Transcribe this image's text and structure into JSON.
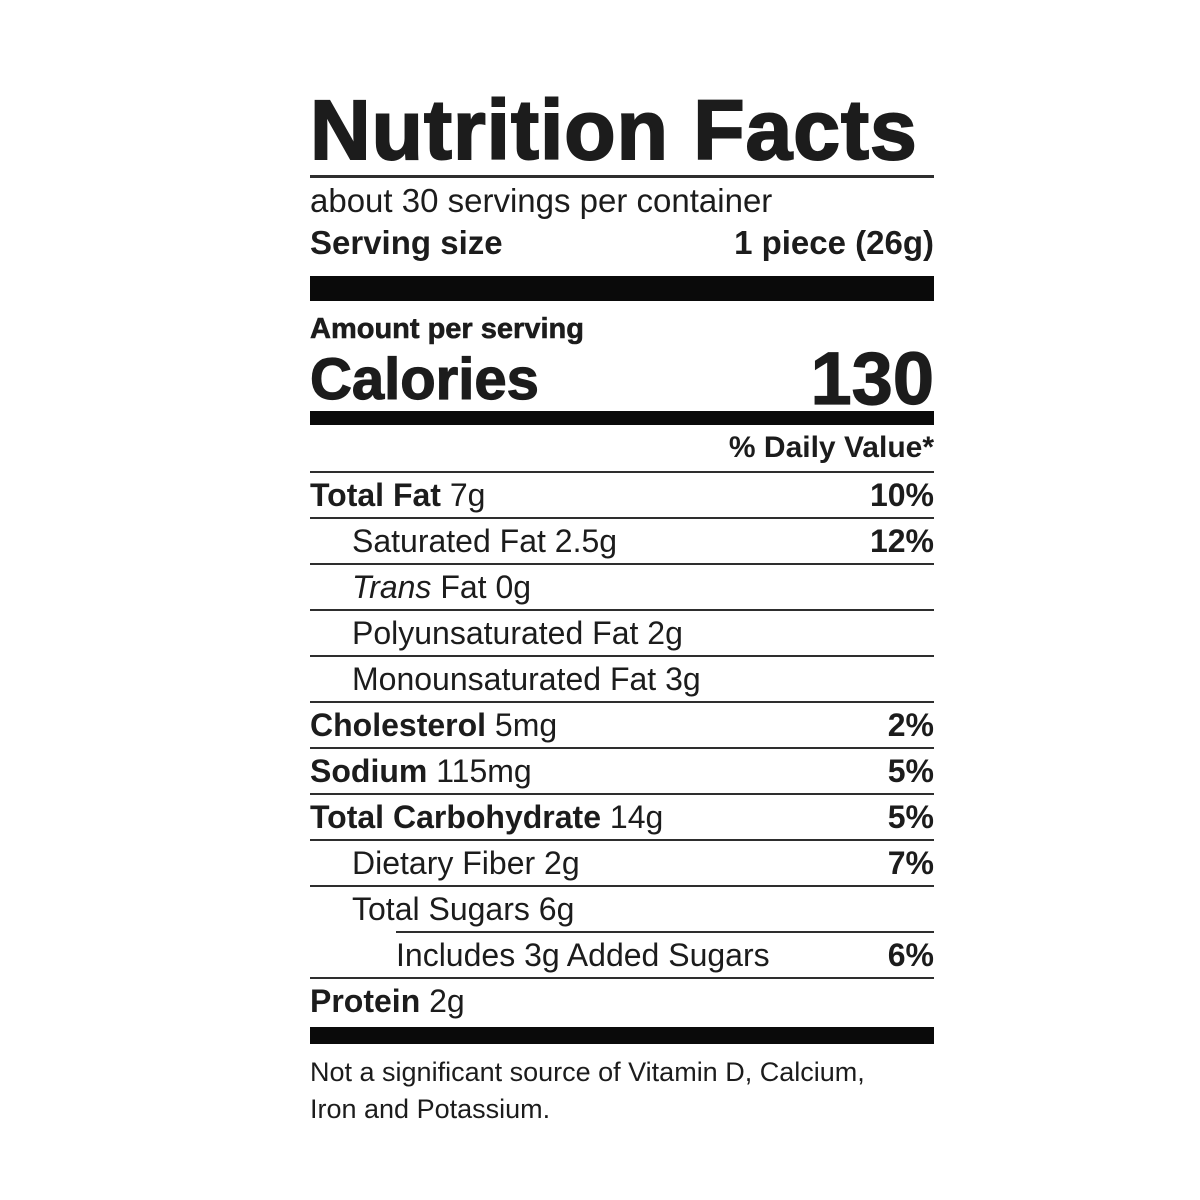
{
  "label": {
    "title": "Nutrition Facts",
    "servings_per_container": "about 30 servings per container",
    "serving_size_label": "Serving size",
    "serving_size_value": "1 piece (26g)",
    "amount_per_serving": "Amount per serving",
    "calories_label": "Calories",
    "calories_value": "130",
    "daily_value_header": "% Daily Value*",
    "rows": [
      {
        "lead": "Total Fat",
        "rest": " 7g",
        "dv": "10%"
      },
      {
        "lead": "Saturated Fat 2.5g",
        "rest": "",
        "dv": "12%"
      },
      {
        "lead": "Trans",
        "rest": " Fat 0g",
        "dv": ""
      },
      {
        "lead": "Polyunsaturated Fat 2g",
        "rest": "",
        "dv": ""
      },
      {
        "lead": "Monounsaturated Fat 3g",
        "rest": "",
        "dv": ""
      },
      {
        "lead": "Cholesterol",
        "rest": " 5mg",
        "dv": "2%"
      },
      {
        "lead": "Sodium",
        "rest": " 115mg",
        "dv": "5%"
      },
      {
        "lead": "Total Carbohydrate",
        "rest": " 14g",
        "dv": "5%"
      },
      {
        "lead": "Dietary Fiber 2g",
        "rest": "",
        "dv": "7%"
      },
      {
        "lead": "Total Sugars 6g",
        "rest": "",
        "dv": ""
      },
      {
        "lead": "Includes 3g Added Sugars",
        "rest": "",
        "dv": "6%"
      },
      {
        "lead": "Protein",
        "rest": " 2g",
        "dv": ""
      }
    ],
    "footnote_line1": "Not a significant source of Vitamin D, Calcium,",
    "footnote_line2": "Iron and Potassium.",
    "colors": {
      "ink": "#1c1c1c",
      "rule": "#2e2e2e",
      "bar": "#0a0a0a",
      "background": "#ffffff"
    }
  }
}
